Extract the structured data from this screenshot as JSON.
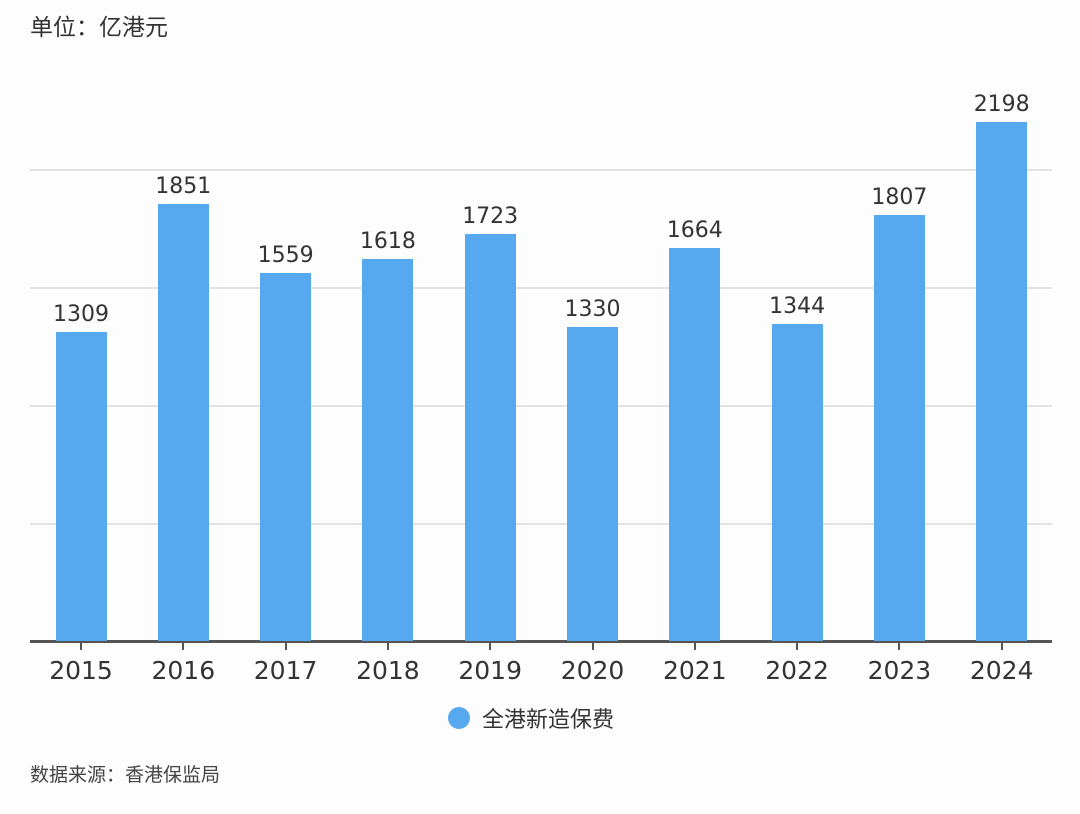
{
  "unit_label": "单位：亿港元",
  "source_label": "数据来源：香港保监局",
  "legend": {
    "label": "全港新造保费",
    "color": "#57a9ef"
  },
  "chart_data": {
    "type": "bar",
    "title": "",
    "unit": "亿港元",
    "xlabel": "",
    "ylabel": "",
    "ylim": [
      0,
      2500
    ],
    "grid": true,
    "gridlines": [
      500,
      1000,
      1500,
      2000
    ],
    "legend_position": "bottom",
    "categories": [
      "2015",
      "2016",
      "2017",
      "2018",
      "2019",
      "2020",
      "2021",
      "2022",
      "2023",
      "2024"
    ],
    "series": [
      {
        "name": "全港新造保费",
        "color": "#57a9ef",
        "values": [
          1309,
          1851,
          1559,
          1618,
          1723,
          1330,
          1664,
          1344,
          1807,
          2198
        ]
      }
    ],
    "source": "香港保监局"
  }
}
